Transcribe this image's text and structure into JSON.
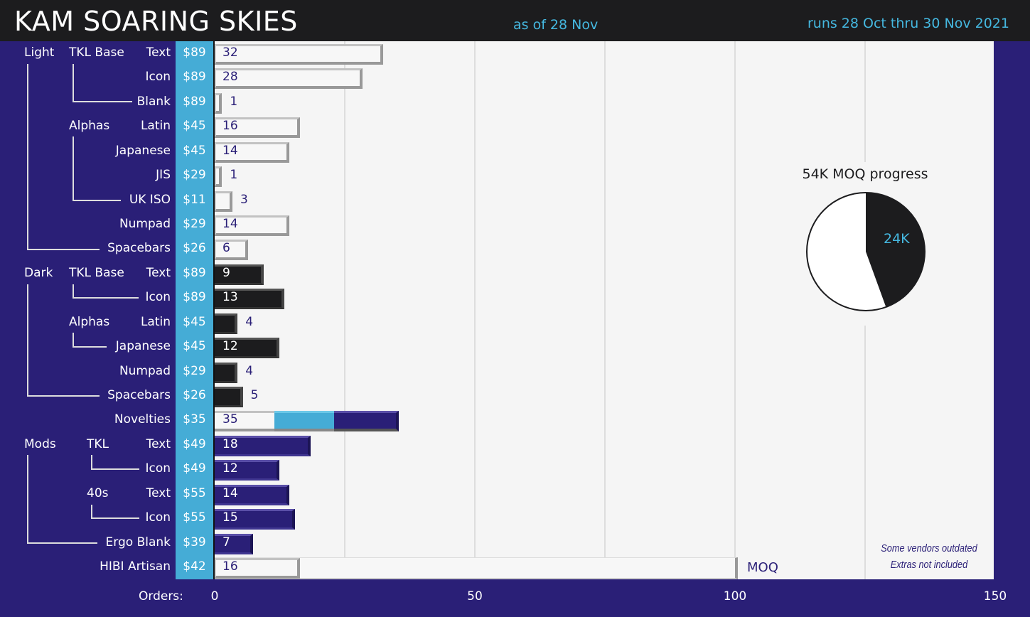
{
  "header": {
    "title": "KAM SOARING SKIES",
    "as_of": "as of 28 Nov",
    "runs": "runs 28 Oct thru 30 Nov 2021"
  },
  "colors": {
    "background": "#2a1f77",
    "header": "#1c1c1e",
    "accent": "#45acd6",
    "light": "#f7f7f7",
    "dark": "#1c1c1e",
    "mods": "#2a1f77"
  },
  "chart_data": [
    {
      "type": "bar",
      "orientation": "horizontal",
      "xlabel": "Orders:",
      "xlim": [
        0,
        150
      ],
      "xticks": [
        0,
        50,
        100,
        150
      ],
      "grid": true,
      "rows": [
        {
          "group": "Light",
          "subgroup": "TKL Base",
          "label": "Text",
          "price": "$89",
          "value": 32,
          "style": "light"
        },
        {
          "group": "",
          "subgroup": "",
          "label": "Icon",
          "price": "$89",
          "value": 28,
          "style": "light"
        },
        {
          "group": "",
          "subgroup": "",
          "label": "Blank",
          "price": "$89",
          "value": 1,
          "style": "light"
        },
        {
          "group": "",
          "subgroup": "Alphas",
          "label": "Latin",
          "price": "$45",
          "value": 16,
          "style": "light"
        },
        {
          "group": "",
          "subgroup": "",
          "label": "Japanese",
          "price": "$45",
          "value": 14,
          "style": "light"
        },
        {
          "group": "",
          "subgroup": "",
          "label": "JIS",
          "price": "$29",
          "value": 1,
          "style": "light"
        },
        {
          "group": "",
          "subgroup": "",
          "label": "UK ISO",
          "price": "$11",
          "value": 3,
          "style": "light"
        },
        {
          "group": "",
          "subgroup": "",
          "label": "Numpad",
          "price": "$29",
          "value": 14,
          "style": "light"
        },
        {
          "group": "",
          "subgroup": "",
          "label": "Spacebars",
          "price": "$26",
          "value": 6,
          "style": "light"
        },
        {
          "group": "Dark",
          "subgroup": "TKL Base",
          "label": "Text",
          "price": "$89",
          "value": 9,
          "style": "dark"
        },
        {
          "group": "",
          "subgroup": "",
          "label": "Icon",
          "price": "$89",
          "value": 13,
          "style": "dark"
        },
        {
          "group": "",
          "subgroup": "Alphas",
          "label": "Latin",
          "price": "$45",
          "value": 4,
          "style": "dark"
        },
        {
          "group": "",
          "subgroup": "",
          "label": "Japanese",
          "price": "$45",
          "value": 12,
          "style": "dark"
        },
        {
          "group": "",
          "subgroup": "",
          "label": "Numpad",
          "price": "$29",
          "value": 4,
          "style": "dark"
        },
        {
          "group": "",
          "subgroup": "",
          "label": "Spacebars",
          "price": "$26",
          "value": 5,
          "style": "dark"
        },
        {
          "group": "",
          "subgroup": "",
          "label": "Novelties",
          "price": "$35",
          "value": 35,
          "style": "novelties",
          "segments": [
            11.5,
            11.5,
            12
          ]
        },
        {
          "group": "Mods",
          "subgroup": "TKL",
          "label": "Text",
          "price": "$49",
          "value": 18,
          "style": "mods"
        },
        {
          "group": "",
          "subgroup": "",
          "label": "Icon",
          "price": "$49",
          "value": 12,
          "style": "mods"
        },
        {
          "group": "",
          "subgroup": "40s",
          "label": "Text",
          "price": "$55",
          "value": 14,
          "style": "mods"
        },
        {
          "group": "",
          "subgroup": "",
          "label": "Icon",
          "price": "$55",
          "value": 15,
          "style": "mods"
        },
        {
          "group": "",
          "subgroup": "",
          "label": "Ergo Blank",
          "price": "$39",
          "value": 7,
          "style": "mods"
        },
        {
          "group": "",
          "subgroup": "",
          "label": "HIBI Artisan",
          "price": "$42",
          "value": 16,
          "style": "light",
          "moq": 100,
          "moq_label": "MOQ"
        }
      ],
      "notes": [
        "Some vendors outdated",
        "Extras not included"
      ]
    },
    {
      "type": "pie",
      "title": "54K MOQ progress",
      "total": 54,
      "progress": 24,
      "progress_label": "24K",
      "colors": [
        "#1c1c1e",
        "#ffffff"
      ]
    }
  ]
}
